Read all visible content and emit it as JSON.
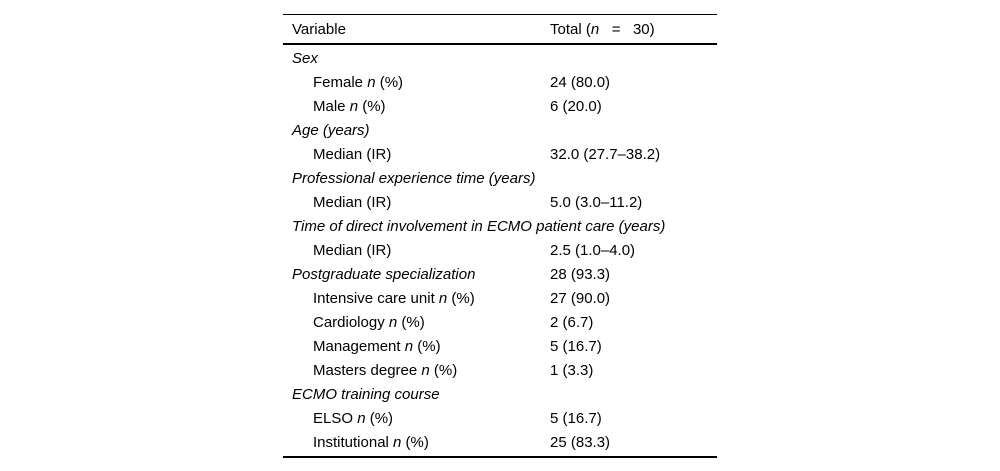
{
  "table": {
    "header": {
      "variable": "Variable",
      "total": "Total (n   =   30)"
    },
    "rows": [
      {
        "label": "Sex",
        "value": "",
        "type": "category"
      },
      {
        "label": "Female n (%)",
        "value": "24 (80.0)",
        "type": "sub"
      },
      {
        "label": "Male n (%)",
        "value": "6 (20.0)",
        "type": "sub"
      },
      {
        "label": "Age (years)",
        "value": "",
        "type": "category"
      },
      {
        "label": "Median (IR)",
        "value": "32.0 (27.7–38.2)",
        "type": "sub"
      },
      {
        "label": "Professional experience time (years)",
        "value": "",
        "type": "category"
      },
      {
        "label": "Median (IR)",
        "value": "5.0 (3.0–11.2)",
        "type": "sub"
      },
      {
        "label": "Time of direct involvement in ECMO patient care (years)",
        "value": "",
        "type": "category"
      },
      {
        "label": "Median (IR)",
        "value": "2.5 (1.0–4.0)",
        "type": "sub"
      },
      {
        "label": "Postgraduate specialization",
        "value": "28 (93.3)",
        "type": "category"
      },
      {
        "label": "Intensive care unit n (%)",
        "value": "27 (90.0)",
        "type": "sub"
      },
      {
        "label": "Cardiology n (%)",
        "value": "2 (6.7)",
        "type": "sub"
      },
      {
        "label": "Management n (%)",
        "value": "5 (16.7)",
        "type": "sub"
      },
      {
        "label": "Masters degree n (%)",
        "value": "1 (3.3)",
        "type": "sub"
      },
      {
        "label": "ECMO training course",
        "value": "",
        "type": "category"
      },
      {
        "label": "ELSO n (%)",
        "value": "5 (16.7)",
        "type": "sub"
      },
      {
        "label": "Institutional n (%)",
        "value": "25 (83.3)",
        "type": "sub"
      }
    ],
    "text_color": "#000000",
    "rule_color": "#000000"
  }
}
